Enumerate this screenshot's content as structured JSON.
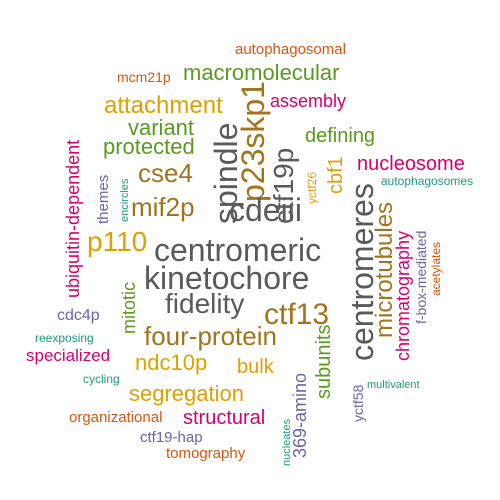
{
  "palette": {
    "gray": "#5a5a5a",
    "olive": "#a0751d",
    "green": "#5a9a20",
    "gold": "#e0a000",
    "magenta": "#d6006e",
    "purple": "#6f63a8",
    "orange": "#d9550f",
    "teal": "#1f9a7d"
  },
  "words": [
    {
      "text": "autophagosomal",
      "color": "orange"
    },
    {
      "text": "mcm21p",
      "color": "orange"
    },
    {
      "text": "macromolecular",
      "color": "green"
    },
    {
      "text": "assembly",
      "color": "magenta"
    },
    {
      "text": "attachment",
      "color": "gold"
    },
    {
      "text": "p23skp1",
      "color": "olive"
    },
    {
      "text": "variant",
      "color": "green"
    },
    {
      "text": "ubiquitin-dependent",
      "color": "magenta"
    },
    {
      "text": "protected",
      "color": "green"
    },
    {
      "text": "defining",
      "color": "green"
    },
    {
      "text": "spindle",
      "color": "gray"
    },
    {
      "text": "ctf19p",
      "color": "gray"
    },
    {
      "text": "cse4",
      "color": "olive"
    },
    {
      "text": "themes",
      "color": "purple"
    },
    {
      "text": "cbf1",
      "color": "gold"
    },
    {
      "text": "yctf26",
      "color": "gold"
    },
    {
      "text": "nucleosome",
      "color": "magenta"
    },
    {
      "text": "encircles",
      "color": "teal"
    },
    {
      "text": "autophagosomes",
      "color": "teal"
    },
    {
      "text": "mif2p",
      "color": "olive"
    },
    {
      "text": "cdeiii",
      "color": "gray"
    },
    {
      "text": "centromeres",
      "color": "gray"
    },
    {
      "text": "microtubules",
      "color": "olive"
    },
    {
      "text": "chromatography",
      "color": "magenta"
    },
    {
      "text": "f-box-mediated",
      "color": "purple"
    },
    {
      "text": "acetylates",
      "color": "orange"
    },
    {
      "text": "p110",
      "color": "gold"
    },
    {
      "text": "centromeric",
      "color": "gray"
    },
    {
      "text": "kinetochore",
      "color": "gray"
    },
    {
      "text": "mitotic",
      "color": "green"
    },
    {
      "text": "fidelity",
      "color": "gray"
    },
    {
      "text": "ctf13",
      "color": "olive"
    },
    {
      "text": "cdc4p",
      "color": "purple"
    },
    {
      "text": "four-protein",
      "color": "olive"
    },
    {
      "text": "subunits",
      "color": "green"
    },
    {
      "text": "reexposing",
      "color": "teal"
    },
    {
      "text": "specialized",
      "color": "magenta"
    },
    {
      "text": "ndc10p",
      "color": "gold"
    },
    {
      "text": "bulk",
      "color": "gold"
    },
    {
      "text": "yctf58",
      "color": "purple"
    },
    {
      "text": "cycling",
      "color": "teal"
    },
    {
      "text": "multivalent",
      "color": "teal"
    },
    {
      "text": "segregation",
      "color": "gold"
    },
    {
      "text": "369-amino",
      "color": "purple"
    },
    {
      "text": "organizational",
      "color": "orange"
    },
    {
      "text": "structural",
      "color": "magenta"
    },
    {
      "text": "ctf19-hap",
      "color": "purple"
    },
    {
      "text": "nucleates",
      "color": "teal"
    },
    {
      "text": "tomography",
      "color": "orange"
    }
  ]
}
